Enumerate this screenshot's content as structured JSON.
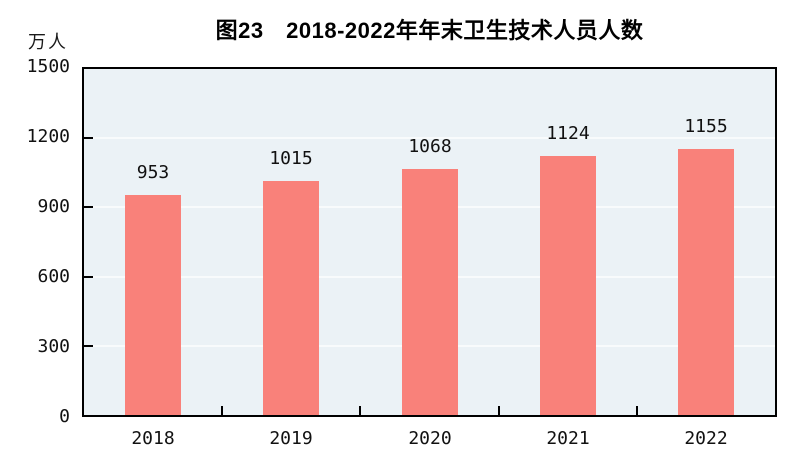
{
  "title": "图23　2018-2022年年末卫生技术人员人数",
  "unit_label": "万人",
  "colors": {
    "bar": "#F9817A",
    "plot_bg": "#EBF2F6",
    "gridline": "#F8FBFC",
    "axis": "#000000",
    "text": "#111111"
  },
  "chart_data": {
    "type": "bar",
    "title": "图23　2018-2022年年末卫生技术人员人数",
    "categories": [
      "2018",
      "2019",
      "2020",
      "2021",
      "2022"
    ],
    "values": [
      953,
      1015,
      1068,
      1124,
      1155
    ],
    "xlabel": "",
    "ylabel": "万人",
    "ylim": [
      0,
      1500
    ],
    "yticks": [
      0,
      300,
      600,
      900,
      1200,
      1500
    ],
    "grid": true,
    "legend": "none",
    "bar_labels_shown": true
  }
}
